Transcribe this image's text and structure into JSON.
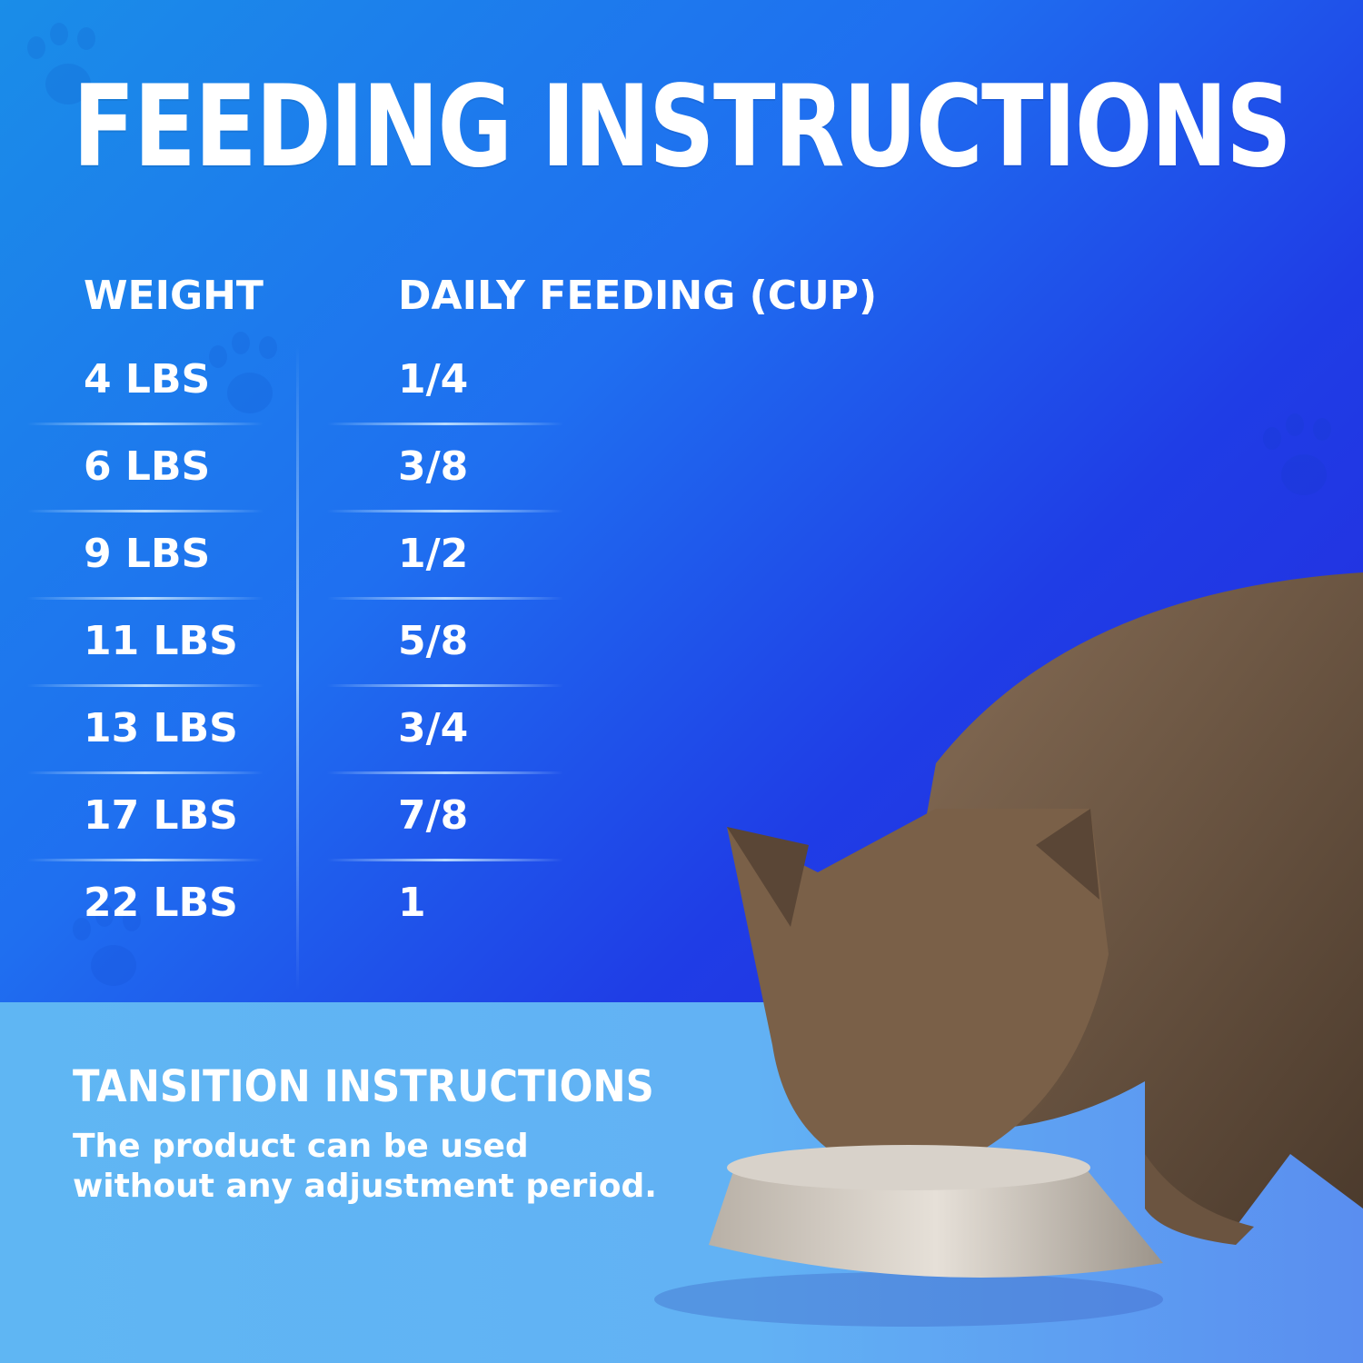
{
  "title": "FEEDING INSTRUCTIONS",
  "table": {
    "headers": [
      "WEIGHT",
      "DAILY FEEDING (CUP)"
    ],
    "rows": [
      {
        "weight": "4 LBS",
        "cup": "1/4"
      },
      {
        "weight": "6 LBS",
        "cup": "3/8"
      },
      {
        "weight": "9 LBS",
        "cup": "1/2"
      },
      {
        "weight": "11 LBS",
        "cup": "5/8"
      },
      {
        "weight": "13 LBS",
        "cup": "3/4"
      },
      {
        "weight": "17 LBS",
        "cup": "7/8"
      },
      {
        "weight": "22 LBS",
        "cup": "1"
      }
    ]
  },
  "transition": {
    "title": "TANSITION INSTRUCTIONS",
    "body": "The product can be used without any adjustment period."
  },
  "colors": {
    "bg_top": "#1f6ff0",
    "bg_right": "#2a1fd9",
    "bottom_panel": "#5fb6f3",
    "text": "#ffffff"
  }
}
